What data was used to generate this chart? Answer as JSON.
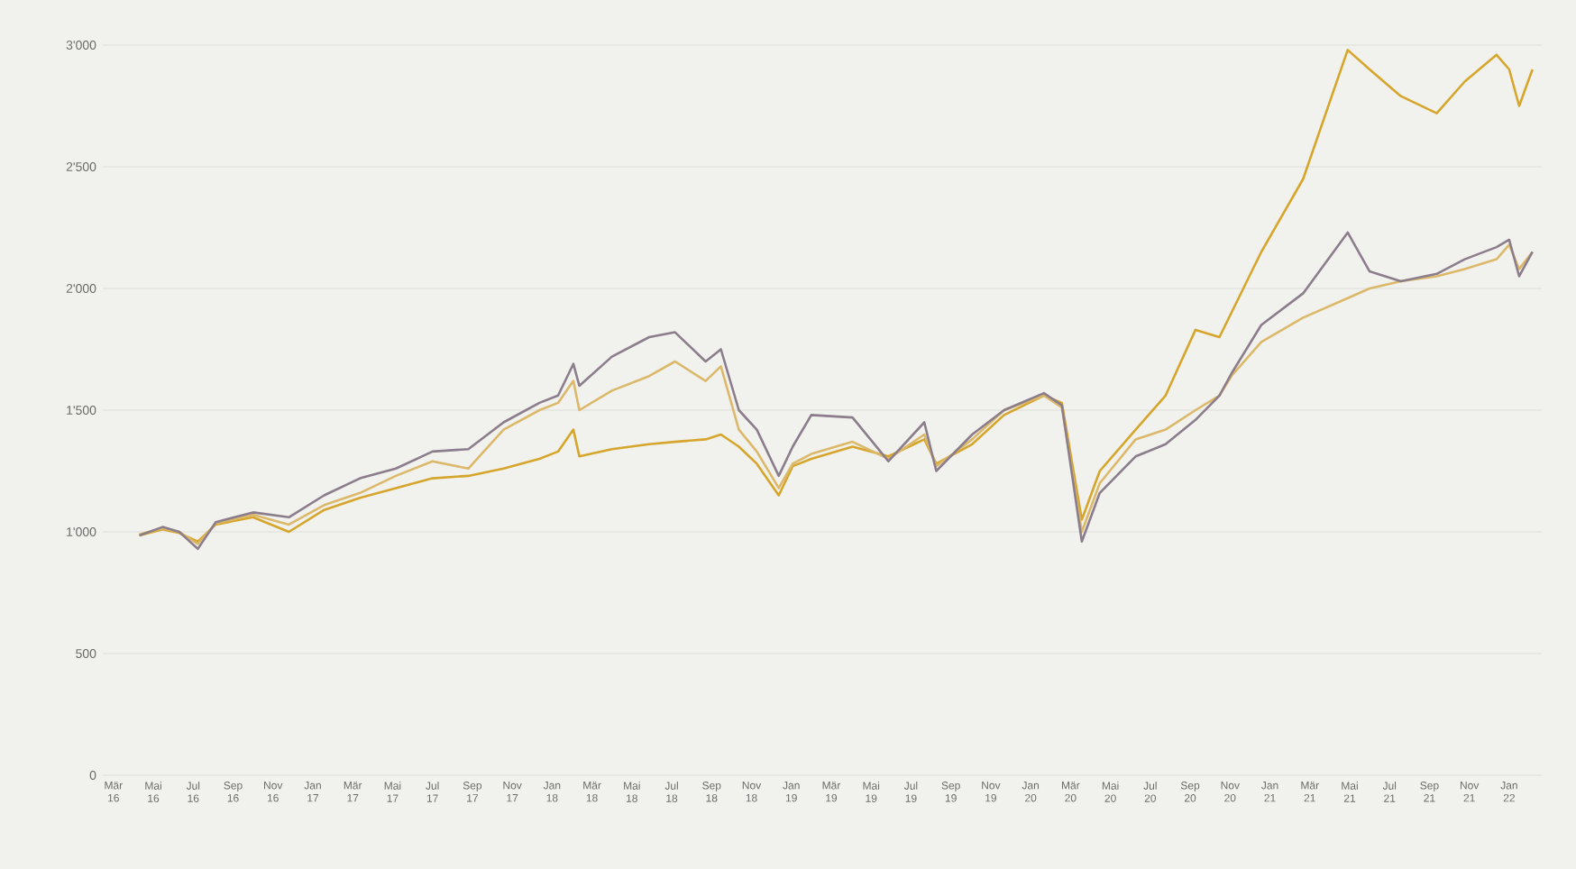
{
  "chart_data": {
    "type": "line",
    "x": [
      "2016-04-10",
      "2016-05-15",
      "2016-06-10",
      "2016-07-08",
      "2016-08-05",
      "2016-10-01",
      "2016-11-25",
      "2017-01-18",
      "2017-03-12",
      "2017-05-06",
      "2017-07-01",
      "2017-08-25",
      "2017-10-18",
      "2017-12-12",
      "2018-01-10",
      "2018-02-03",
      "2018-02-12",
      "2018-04-01",
      "2018-05-27",
      "2018-07-06",
      "2018-08-22",
      "2018-09-15",
      "2018-10-12",
      "2018-11-09",
      "2018-12-12",
      "2019-01-03",
      "2019-02-01",
      "2019-04-03",
      "2019-05-27",
      "2019-07-21",
      "2019-08-09",
      "2019-10-03",
      "2019-11-21",
      "2020-01-21",
      "2020-02-18",
      "2020-03-18",
      "2020-04-15",
      "2020-06-09",
      "2020-07-24",
      "2020-09-09",
      "2020-10-15",
      "2020-11-03",
      "2020-12-18",
      "2021-02-21",
      "2021-04-28",
      "2021-06-01",
      "2021-07-18",
      "2021-09-12",
      "2021-10-24",
      "2021-12-12",
      "2022-01-01",
      "2022-01-16",
      "2022-02-06"
    ],
    "series": [
      {
        "color": "#d6a62c",
        "values": [
          985,
          1010,
          995,
          960,
          1030,
          1060,
          1000,
          1090,
          1140,
          1180,
          1220,
          1230,
          1260,
          1300,
          1330,
          1420,
          1310,
          1340,
          1360,
          1370,
          1380,
          1400,
          1350,
          1280,
          1150,
          1270,
          1300,
          1350,
          1310,
          1380,
          1280,
          1360,
          1480,
          1560,
          1530,
          1050,
          1250,
          1420,
          1560,
          1830,
          1800,
          1900,
          2150,
          2450,
          2980,
          2900,
          2790,
          2720,
          2850,
          2960,
          2900,
          2750,
          2900
        ]
      },
      {
        "color": "#dcb96a",
        "values": [
          990,
          1015,
          1000,
          950,
          1035,
          1070,
          1030,
          1110,
          1160,
          1230,
          1290,
          1260,
          1420,
          1500,
          1530,
          1620,
          1500,
          1580,
          1640,
          1700,
          1620,
          1680,
          1420,
          1330,
          1180,
          1280,
          1320,
          1370,
          1300,
          1400,
          1270,
          1380,
          1500,
          1560,
          1510,
          1000,
          1200,
          1380,
          1420,
          1500,
          1560,
          1640,
          1780,
          1880,
          1960,
          2000,
          2030,
          2050,
          2080,
          2120,
          2180,
          2080,
          2150
        ]
      },
      {
        "color": "#8b7d8b",
        "values": [
          985,
          1020,
          1000,
          930,
          1040,
          1080,
          1060,
          1150,
          1220,
          1260,
          1330,
          1340,
          1450,
          1530,
          1560,
          1690,
          1600,
          1720,
          1800,
          1820,
          1700,
          1750,
          1500,
          1420,
          1230,
          1350,
          1480,
          1470,
          1290,
          1450,
          1250,
          1400,
          1500,
          1570,
          1520,
          960,
          1160,
          1310,
          1360,
          1460,
          1560,
          1650,
          1850,
          1980,
          2230,
          2070,
          2030,
          2060,
          2120,
          2170,
          2200,
          2050,
          2150
        ]
      }
    ],
    "xlim": [
      "2016-02-15",
      "2022-02-20"
    ],
    "xticks": [
      {
        "value": "2016-03",
        "label": "Mär 16"
      },
      {
        "value": "2016-05",
        "label": "Mai 16"
      },
      {
        "value": "2016-07",
        "label": "Jul 16"
      },
      {
        "value": "2016-09",
        "label": "Sep 16"
      },
      {
        "value": "2016-11",
        "label": "Nov 16"
      },
      {
        "value": "2017-01",
        "label": "Jan 17"
      },
      {
        "value": "2017-03",
        "label": "Mär 17"
      },
      {
        "value": "2017-05",
        "label": "Mai 17"
      },
      {
        "value": "2017-07",
        "label": "Jul 17"
      },
      {
        "value": "2017-09",
        "label": "Sep 17"
      },
      {
        "value": "2017-11",
        "label": "Nov 17"
      },
      {
        "value": "2018-01",
        "label": "Jan 18"
      },
      {
        "value": "2018-03",
        "label": "Mär 18"
      },
      {
        "value": "2018-05",
        "label": "Mai 18"
      },
      {
        "value": "2018-07",
        "label": "Jul 18"
      },
      {
        "value": "2018-09",
        "label": "Sep 18"
      },
      {
        "value": "2018-11",
        "label": "Nov 18"
      },
      {
        "value": "2019-01",
        "label": "Jan 19"
      },
      {
        "value": "2019-03",
        "label": "Mär 19"
      },
      {
        "value": "2019-05",
        "label": "Mai 19"
      },
      {
        "value": "2019-07",
        "label": "Jul 19"
      },
      {
        "value": "2019-09",
        "label": "Sep 19"
      },
      {
        "value": "2019-11",
        "label": "Nov 19"
      },
      {
        "value": "2020-01",
        "label": "Jan 20"
      },
      {
        "value": "2020-03",
        "label": "Mär 20"
      },
      {
        "value": "2020-05",
        "label": "Mai 20"
      },
      {
        "value": "2020-07",
        "label": "Jul 20"
      },
      {
        "value": "2020-09",
        "label": "Sep 20"
      },
      {
        "value": "2020-11",
        "label": "Nov 20"
      },
      {
        "value": "2021-01",
        "label": "Jan 21"
      },
      {
        "value": "2021-03",
        "label": "Mär 21"
      },
      {
        "value": "2021-05",
        "label": "Mai 21"
      },
      {
        "value": "2021-07",
        "label": "Jul 21"
      },
      {
        "value": "2021-09",
        "label": "Sep 21"
      },
      {
        "value": "2021-11",
        "label": "Nov 21"
      },
      {
        "value": "2022-01",
        "label": "Jan 22"
      }
    ],
    "ylim": [
      0,
      3000
    ],
    "yticks": [
      0,
      500,
      {
        "value": 1000,
        "label": "1'000"
      },
      {
        "value": 1500,
        "label": "1'500"
      },
      {
        "value": 2000,
        "label": "2'000"
      },
      {
        "value": 2500,
        "label": "2'500"
      },
      {
        "value": 3000,
        "label": "3'000"
      }
    ],
    "grid": "y",
    "line_style": "solid"
  }
}
